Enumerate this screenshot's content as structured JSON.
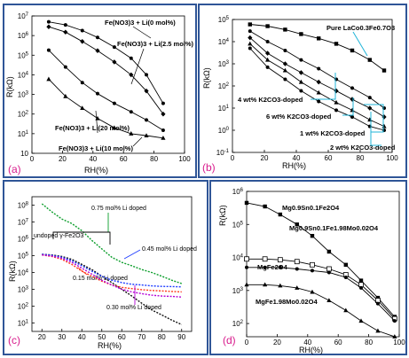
{
  "chart_data": [
    {
      "type": "line",
      "panel_label": "(a)",
      "xlabel": "RH(%)",
      "ylabel": "R(kΩ)",
      "xlim": [
        0,
        100
      ],
      "ylim_log10": [
        0,
        7
      ],
      "xticks": [
        0,
        20,
        40,
        60,
        80,
        100
      ],
      "yticks": [
        "10",
        "10^1",
        "10^2",
        "10^3",
        "10^4",
        "10^5",
        "10^6",
        "10^7"
      ],
      "series": [
        {
          "name": "Fe(NO3)3 + Li(0 mol%)",
          "marker": "circle",
          "x": [
            11,
            22,
            33,
            43,
            54,
            65,
            75,
            86
          ],
          "y": [
            5000000,
            3500000,
            1800000,
            800000,
            260000,
            70000,
            10000,
            350
          ]
        },
        {
          "name": "Fe(NO3)3 + Li(2.5 mol%)",
          "marker": "diamond",
          "x": [
            11,
            22,
            33,
            43,
            54,
            65,
            75,
            86
          ],
          "y": [
            2800000,
            1500000,
            500000,
            170000,
            45000,
            10000,
            1500,
            100
          ]
        },
        {
          "name": "Fe(NO3)3 + Li(20 mol%)",
          "marker": "circle",
          "x": [
            11,
            22,
            33,
            43,
            54,
            65,
            75,
            86
          ],
          "y": [
            180000,
            25000,
            4000,
            1100,
            350,
            130,
            50,
            15
          ]
        },
        {
          "name": "Fe(NO3)3 + Li(10 mol%)",
          "marker": "triangle",
          "x": [
            11,
            22,
            33,
            43,
            54,
            65,
            75,
            86
          ],
          "y": [
            6000,
            800,
            200,
            60,
            20,
            10,
            8,
            6
          ]
        }
      ]
    },
    {
      "type": "line",
      "panel_label": "(b)",
      "xlabel": "RH(%)",
      "ylabel": "R(kΩ)",
      "xlim": [
        0,
        100
      ],
      "ylim_log10": [
        -1,
        5
      ],
      "xticks": [
        0,
        20,
        40,
        60,
        80,
        100
      ],
      "yticks": [
        "10^-1",
        "10^0",
        "10^1",
        "10^2",
        "10^3",
        "10^4",
        "10^5"
      ],
      "series": [
        {
          "name": "Pure LaCo0.3Fe0.7O3",
          "marker": "square",
          "x": [
            11,
            22,
            33,
            43,
            54,
            65,
            75,
            86,
            95
          ],
          "y": [
            60000,
            50000,
            35000,
            22000,
            14000,
            8000,
            4000,
            1500,
            500
          ]
        },
        {
          "name": "4 wt% K2CO3-doped",
          "marker": "circle",
          "x": [
            11,
            22,
            33,
            43,
            54,
            65,
            75,
            86,
            95
          ],
          "y": [
            30000,
            10000,
            4000,
            1500,
            600,
            200,
            80,
            30,
            10
          ]
        },
        {
          "name": "6 wt% K2CO3-doped",
          "marker": "diamond",
          "x": [
            11,
            22,
            33,
            43,
            54,
            65,
            75,
            86,
            95
          ],
          "y": [
            15000,
            3000,
            1000,
            400,
            150,
            60,
            25,
            10,
            4
          ]
        },
        {
          "name": "1 wt% K2CO3-doped",
          "marker": "triangle",
          "x": [
            11,
            22,
            33,
            43,
            54,
            65,
            75,
            86,
            95
          ],
          "y": [
            8000,
            1500,
            500,
            150,
            50,
            18,
            8,
            3,
            1.5
          ]
        },
        {
          "name": "2 wt% K2CO3-doped",
          "marker": "circle",
          "x": [
            11,
            22,
            33,
            43,
            54,
            65,
            75,
            86,
            95
          ],
          "y": [
            5000,
            700,
            200,
            60,
            20,
            8,
            4,
            1.5,
            1
          ]
        }
      ]
    },
    {
      "type": "line",
      "panel_label": "(c)",
      "xlabel": "RH(%)",
      "ylabel": "R(kΩ)",
      "xlim": [
        15,
        95
      ],
      "ylim_log10": [
        0.5,
        8.5
      ],
      "xticks": [
        20,
        30,
        40,
        50,
        60,
        70,
        80,
        90
      ],
      "yticks": [
        "10^1",
        "10^2",
        "10^3",
        "10^4",
        "10^5",
        "10^6",
        "10^7",
        "10^8"
      ],
      "series": [
        {
          "name": "0.75 mol% Li doped",
          "line_color": "#0a9d2a",
          "x": [
            20,
            25,
            30,
            35,
            40,
            45,
            50,
            55,
            60,
            65,
            70,
            75,
            80,
            85,
            90
          ],
          "y": [
            120000000,
            40000000,
            15000000,
            8000000,
            3000000,
            800000,
            250000,
            80000,
            40000,
            25000,
            15000,
            10000,
            6000,
            3500,
            2200
          ]
        },
        {
          "name": "undoped γ-Fe2O3",
          "line_color": "#111111",
          "x": [
            20,
            25,
            30,
            35,
            40,
            45,
            50,
            55,
            60,
            65,
            70,
            75,
            80,
            85,
            90
          ],
          "y": [
            120000,
            110000,
            90000,
            60000,
            30000,
            15000,
            6000,
            2500,
            1000,
            400,
            150,
            60,
            30,
            15,
            8
          ]
        },
        {
          "name": "0.45 mol% Li doped",
          "line_color": "#1e3cff",
          "x": [
            20,
            25,
            30,
            35,
            40,
            45,
            50,
            55,
            60,
            65,
            70,
            75,
            80,
            85,
            90
          ],
          "y": [
            120000,
            105000,
            80000,
            50000,
            25000,
            12000,
            6000,
            3500,
            2500,
            2000,
            1800,
            1600,
            1500,
            1450,
            1400
          ]
        },
        {
          "name": "0.15 mol% Li doped",
          "line_color": "#ff3b1f",
          "x": [
            20,
            25,
            30,
            35,
            40,
            45,
            50,
            55,
            60,
            65,
            70,
            75,
            80,
            85,
            90
          ],
          "y": [
            110000,
            90000,
            60000,
            30000,
            12000,
            6000,
            3000,
            1800,
            1300,
            1100,
            950,
            850,
            800,
            750,
            700
          ]
        },
        {
          "name": "0.30 mol% Li doped",
          "line_color": "#b400d6",
          "x": [
            20,
            25,
            30,
            35,
            40,
            45,
            50,
            55,
            60,
            65,
            70,
            75,
            80,
            85,
            90
          ],
          "y": [
            110000,
            95000,
            70000,
            40000,
            18000,
            8000,
            3500,
            1800,
            1000,
            700,
            550,
            450,
            400,
            380,
            350
          ]
        }
      ]
    },
    {
      "type": "line",
      "panel_label": "(d)",
      "xlabel": "RH(%)",
      "ylabel": "R(kΩ)",
      "xlim": [
        0,
        100
      ],
      "ylim_log10": [
        1.6,
        6
      ],
      "xticks": [
        0,
        20,
        40,
        60,
        80,
        100
      ],
      "yticks": [
        "10^2",
        "10^3",
        "10^4",
        "10^5",
        "10^6"
      ],
      "series": [
        {
          "name": "Mg0.9Sn0.1Fe2O4",
          "marker": "square",
          "x": [
            0,
            12,
            22,
            33,
            43,
            54,
            65,
            75,
            86,
            97
          ],
          "y": [
            450000,
            350000,
            200000,
            100000,
            45000,
            15000,
            6000,
            2000,
            600,
            160
          ]
        },
        {
          "name": "Mg0.9Sn0.1Fe1.98Mo0.02O4",
          "marker": "square-open",
          "x": [
            0,
            12,
            22,
            33,
            43,
            54,
            65,
            75,
            86,
            97
          ],
          "y": [
            9000,
            9000,
            8500,
            7500,
            6000,
            4500,
            3000,
            1500,
            500,
            140
          ]
        },
        {
          "name": "MgFe2O4",
          "marker": "circle",
          "x": [
            0,
            12,
            22,
            33,
            43,
            54,
            65,
            75,
            86,
            97
          ],
          "y": [
            5000,
            5000,
            5000,
            4500,
            4000,
            3500,
            2500,
            1200,
            400,
            120
          ]
        },
        {
          "name": "MgFe1.98Mo0.02O4",
          "marker": "triangle",
          "x": [
            0,
            12,
            22,
            33,
            43,
            54,
            65,
            75,
            86,
            97
          ],
          "y": [
            1500,
            1500,
            1400,
            1200,
            900,
            500,
            250,
            120,
            60,
            40
          ]
        }
      ]
    }
  ],
  "labels": {
    "a": {
      "letter": "(a)",
      "xlabel": "RH(%)",
      "ylabel": "R(kΩ)",
      "ann": [
        "Fe(NO3)3 + Li(0 mol%)",
        "Fe(NO3)3 + Li(2.5 mol%)",
        "Fe(NO3)3 + Li(20 mol%)",
        "Fe(NO3)3 + Li(10 mol%)"
      ],
      "ticks_x": [
        "0",
        "20",
        "40",
        "60",
        "80",
        "100"
      ],
      "ticks_y": [
        "10",
        "10",
        "10",
        "10",
        "10",
        "10",
        "10",
        "10"
      ],
      "exps_y": [
        "",
        "1",
        "2",
        "3",
        "4",
        "5",
        "6",
        "7"
      ]
    },
    "b": {
      "letter": "(b)",
      "xlabel": "RH(%)",
      "ylabel": "R(kΩ)",
      "ann": [
        "Pure LaCo0.3Fe0.7O3",
        "4 wt% K2CO3-doped",
        "6 wt% K2CO3-doped",
        "1 wt% K2CO3-doped",
        "2 wt% K2CO3-doped"
      ],
      "ticks_x": [
        "0",
        "20",
        "40",
        "60",
        "80",
        "100"
      ],
      "ticks_y": [
        "10",
        "10",
        "10",
        "10",
        "10",
        "10",
        "10"
      ],
      "exps_y": [
        "-1",
        "0",
        "1",
        "2",
        "3",
        "4",
        "5"
      ]
    },
    "c": {
      "letter": "(c)",
      "xlabel": "RH(%)",
      "ylabel": "R(kΩ)",
      "ann": [
        "0.75 mol% Li doped",
        "undoped γ-Fe2O3",
        "0.45 mol% Li doped",
        "0.15 mol% Li doped",
        "0.30 mol% Li doped"
      ],
      "ticks_x": [
        "20",
        "30",
        "40",
        "50",
        "60",
        "70",
        "80",
        "90"
      ],
      "ticks_y": [
        "10",
        "10",
        "10",
        "10",
        "10",
        "10",
        "10",
        "10"
      ],
      "exps_y": [
        "1",
        "2",
        "3",
        "4",
        "5",
        "6",
        "7",
        "8"
      ]
    },
    "d": {
      "letter": "(d)",
      "xlabel": "RH(%)",
      "ylabel": "R(kΩ)",
      "ann": [
        "Mg0.9Sn0.1Fe2O4",
        "Mg0.9Sn0.1Fe1.98Mo0.02O4",
        "MgFe2O4",
        "MgFe1.98Mo0.02O4"
      ],
      "ticks_x": [
        "0",
        "20",
        "40",
        "60",
        "80",
        "100"
      ],
      "ticks_y": [
        "10",
        "10",
        "10",
        "10",
        "10"
      ],
      "exps_y": [
        "2",
        "3",
        "4",
        "5",
        "6"
      ]
    }
  },
  "colors": {
    "frame": "#2f5597",
    "panel_letter": "#d81b8c",
    "callout_cyan": "#1fb4d8"
  }
}
